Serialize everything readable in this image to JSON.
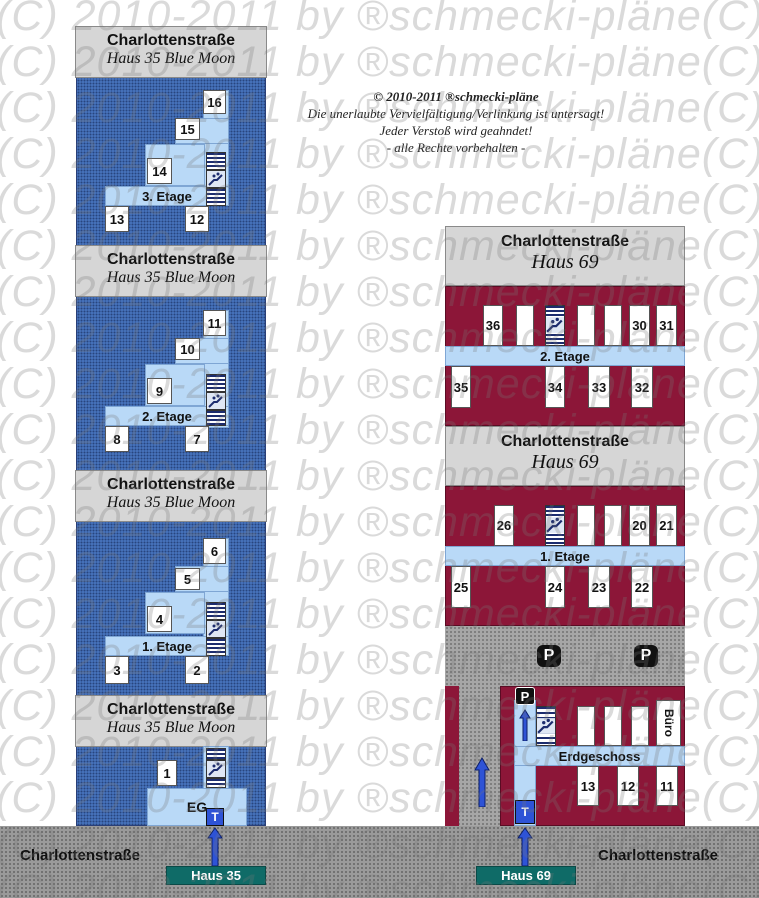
{
  "notice": {
    "line1": "© 2010-2011 ®schmecki-pläne",
    "line2": "Die unerlaubte Vervielfältigung/Verlinkung ist untersagt!",
    "line3": "Jeder Verstoß wird geahndet!",
    "line4": "- alle Rechte vorbehalten -"
  },
  "watermark": {
    "lines": [
      "(C) 2010-2011 by ®schmecki-pläne(C) 2010-2011",
      "(C) 2010-2011 by ®schmecki-pläne(C) 2010-2011",
      "(C) 2010-2011 by ®schmecki-pläne(C) 2010-2011",
      "(C) 2010-2011 by ®schmecki-pläne(C) 2010-2011",
      "(C) 2010-2011 by ®schmecki-pläne(C) 2010-2011",
      "(C) 2010-2011 by ®schmecki-pläne(C) 2010-2011",
      "(C) 2010-2011 by ®schmecki-pläne(C) 2010-2011",
      "(C) 2010-2011 by ®schmecki-pläne(C) 2010-2011",
      "(C) 2010-2011 by ®schmecki-pläne(C) 2010-2011",
      "(C) 2010-2011 by ®schmecki-pläne(C) 2010-2011",
      "(C) 2010-2011 by ®schmecki-pläne(C) 2010-2011",
      "(C) 2010-2011 by ®schmecki-pläne(C) 2010-2011",
      "(C) 2010-2011 by ®schmecki-pläne(C) 2010-2011",
      "(C) 2010-2011 by ®schmecki-pläne(C) 2010-2011",
      "(C) 2010-2011 by ®schmecki-pläne(C) 2010-2011",
      "(C) 2010-2011 by ®schmecki-pläne(C) 2010-2011",
      "(C) 2010-2011 by ®schmecki-pläne(C) 2010-2011",
      "(C) 2010-2011 by ®schmecki-pläne(C) 2010-2011",
      "(C) 2010-2011 by ®schmecki-pläne(C) 2010-2011",
      "(C) 2010-2011 by ®schmecki-pläne(C) 2010-2011"
    ]
  },
  "street": {
    "name_left": "Charlottenstraße",
    "name_right": "Charlottenstraße",
    "entrance_left": "Haus 35",
    "entrance_right": "Haus 69"
  },
  "haus35": {
    "label_title": "Charlottenstraße",
    "label_sub": "Haus 35 Blue Moon",
    "floor3": {
      "corridor": "3. Etage",
      "rooms": [
        "16",
        "15",
        "14",
        "13",
        "12"
      ]
    },
    "floor2": {
      "corridor": "2. Etage",
      "rooms": [
        "11",
        "10",
        "9",
        "8",
        "7"
      ]
    },
    "floor1": {
      "corridor": "1. Etage",
      "rooms": [
        "6",
        "5",
        "4",
        "3",
        "2"
      ]
    },
    "ground": {
      "corridor": "EG",
      "rooms": [
        "1"
      ],
      "elevator": "T"
    }
  },
  "haus69": {
    "label_title": "Charlottenstraße",
    "label_sub": "Haus 69",
    "floor2": {
      "corridor": "2. Etage",
      "rooms": [
        "36",
        "30",
        "31",
        "35",
        "34",
        "33",
        "32"
      ]
    },
    "floor1": {
      "corridor": "1. Etage",
      "rooms": [
        "26",
        "20",
        "21",
        "25",
        "24",
        "23",
        "22"
      ]
    },
    "ground": {
      "corridor": "Erdgeschoss",
      "rooms": [
        "Büro",
        "13",
        "12",
        "11"
      ],
      "parking_label": "P",
      "elevator": "T"
    }
  }
}
